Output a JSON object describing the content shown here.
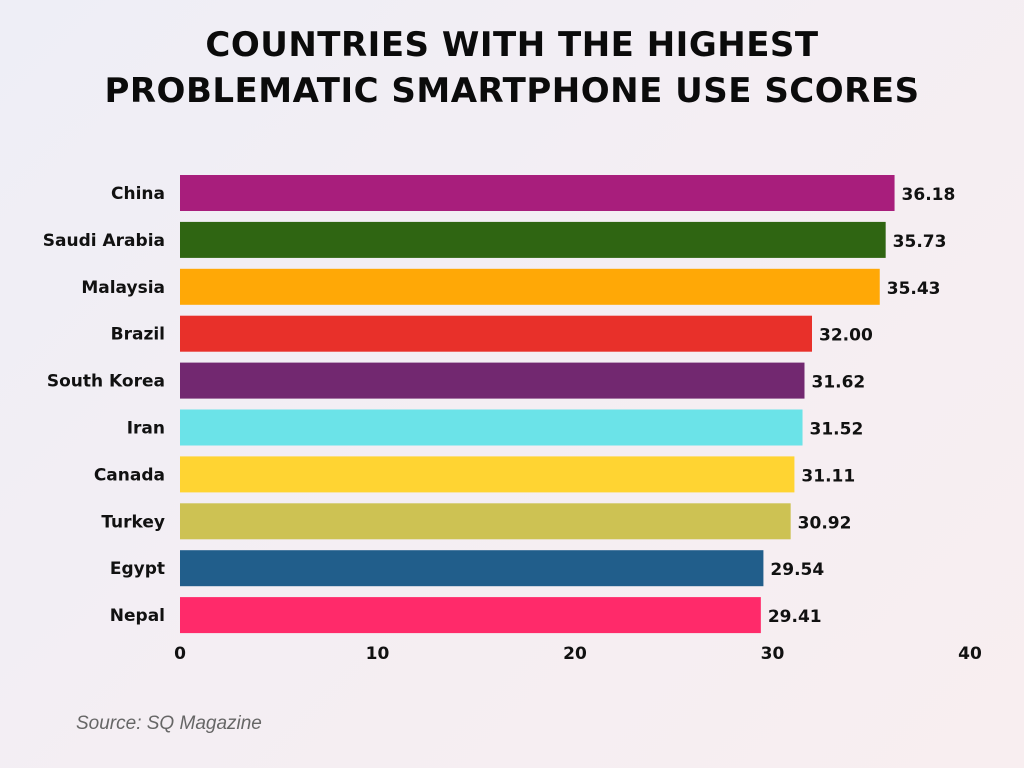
{
  "chart_data": {
    "type": "bar",
    "orientation": "horizontal",
    "title_lines": [
      "COUNTRIES WITH THE HIGHEST",
      "PROBLEMATIC SMARTPHONE USE SCORES"
    ],
    "categories": [
      "China",
      "Saudi Arabia",
      "Malaysia",
      "Brazil",
      "South Korea",
      "Iran",
      "Canada",
      "Turkey",
      "Egypt",
      "Nepal"
    ],
    "values": [
      36.18,
      35.73,
      35.43,
      32.0,
      31.62,
      31.52,
      31.11,
      30.92,
      29.54,
      29.41
    ],
    "value_labels": [
      "36.18",
      "35.73",
      "35.43",
      "32.00",
      "31.62",
      "31.52",
      "31.11",
      "30.92",
      "29.54",
      "29.41"
    ],
    "colors": [
      "#a81e7c",
      "#2f6512",
      "#ffa806",
      "#e8302a",
      "#722870",
      "#6be3e8",
      "#ffd432",
      "#cdc253",
      "#215e8b",
      "#ff2a6a"
    ],
    "xlim": [
      0,
      40
    ],
    "xticks": [
      "0",
      "10",
      "20",
      "30",
      "40"
    ],
    "grid": false,
    "legend": "none"
  },
  "source": "Source: SQ Magazine"
}
